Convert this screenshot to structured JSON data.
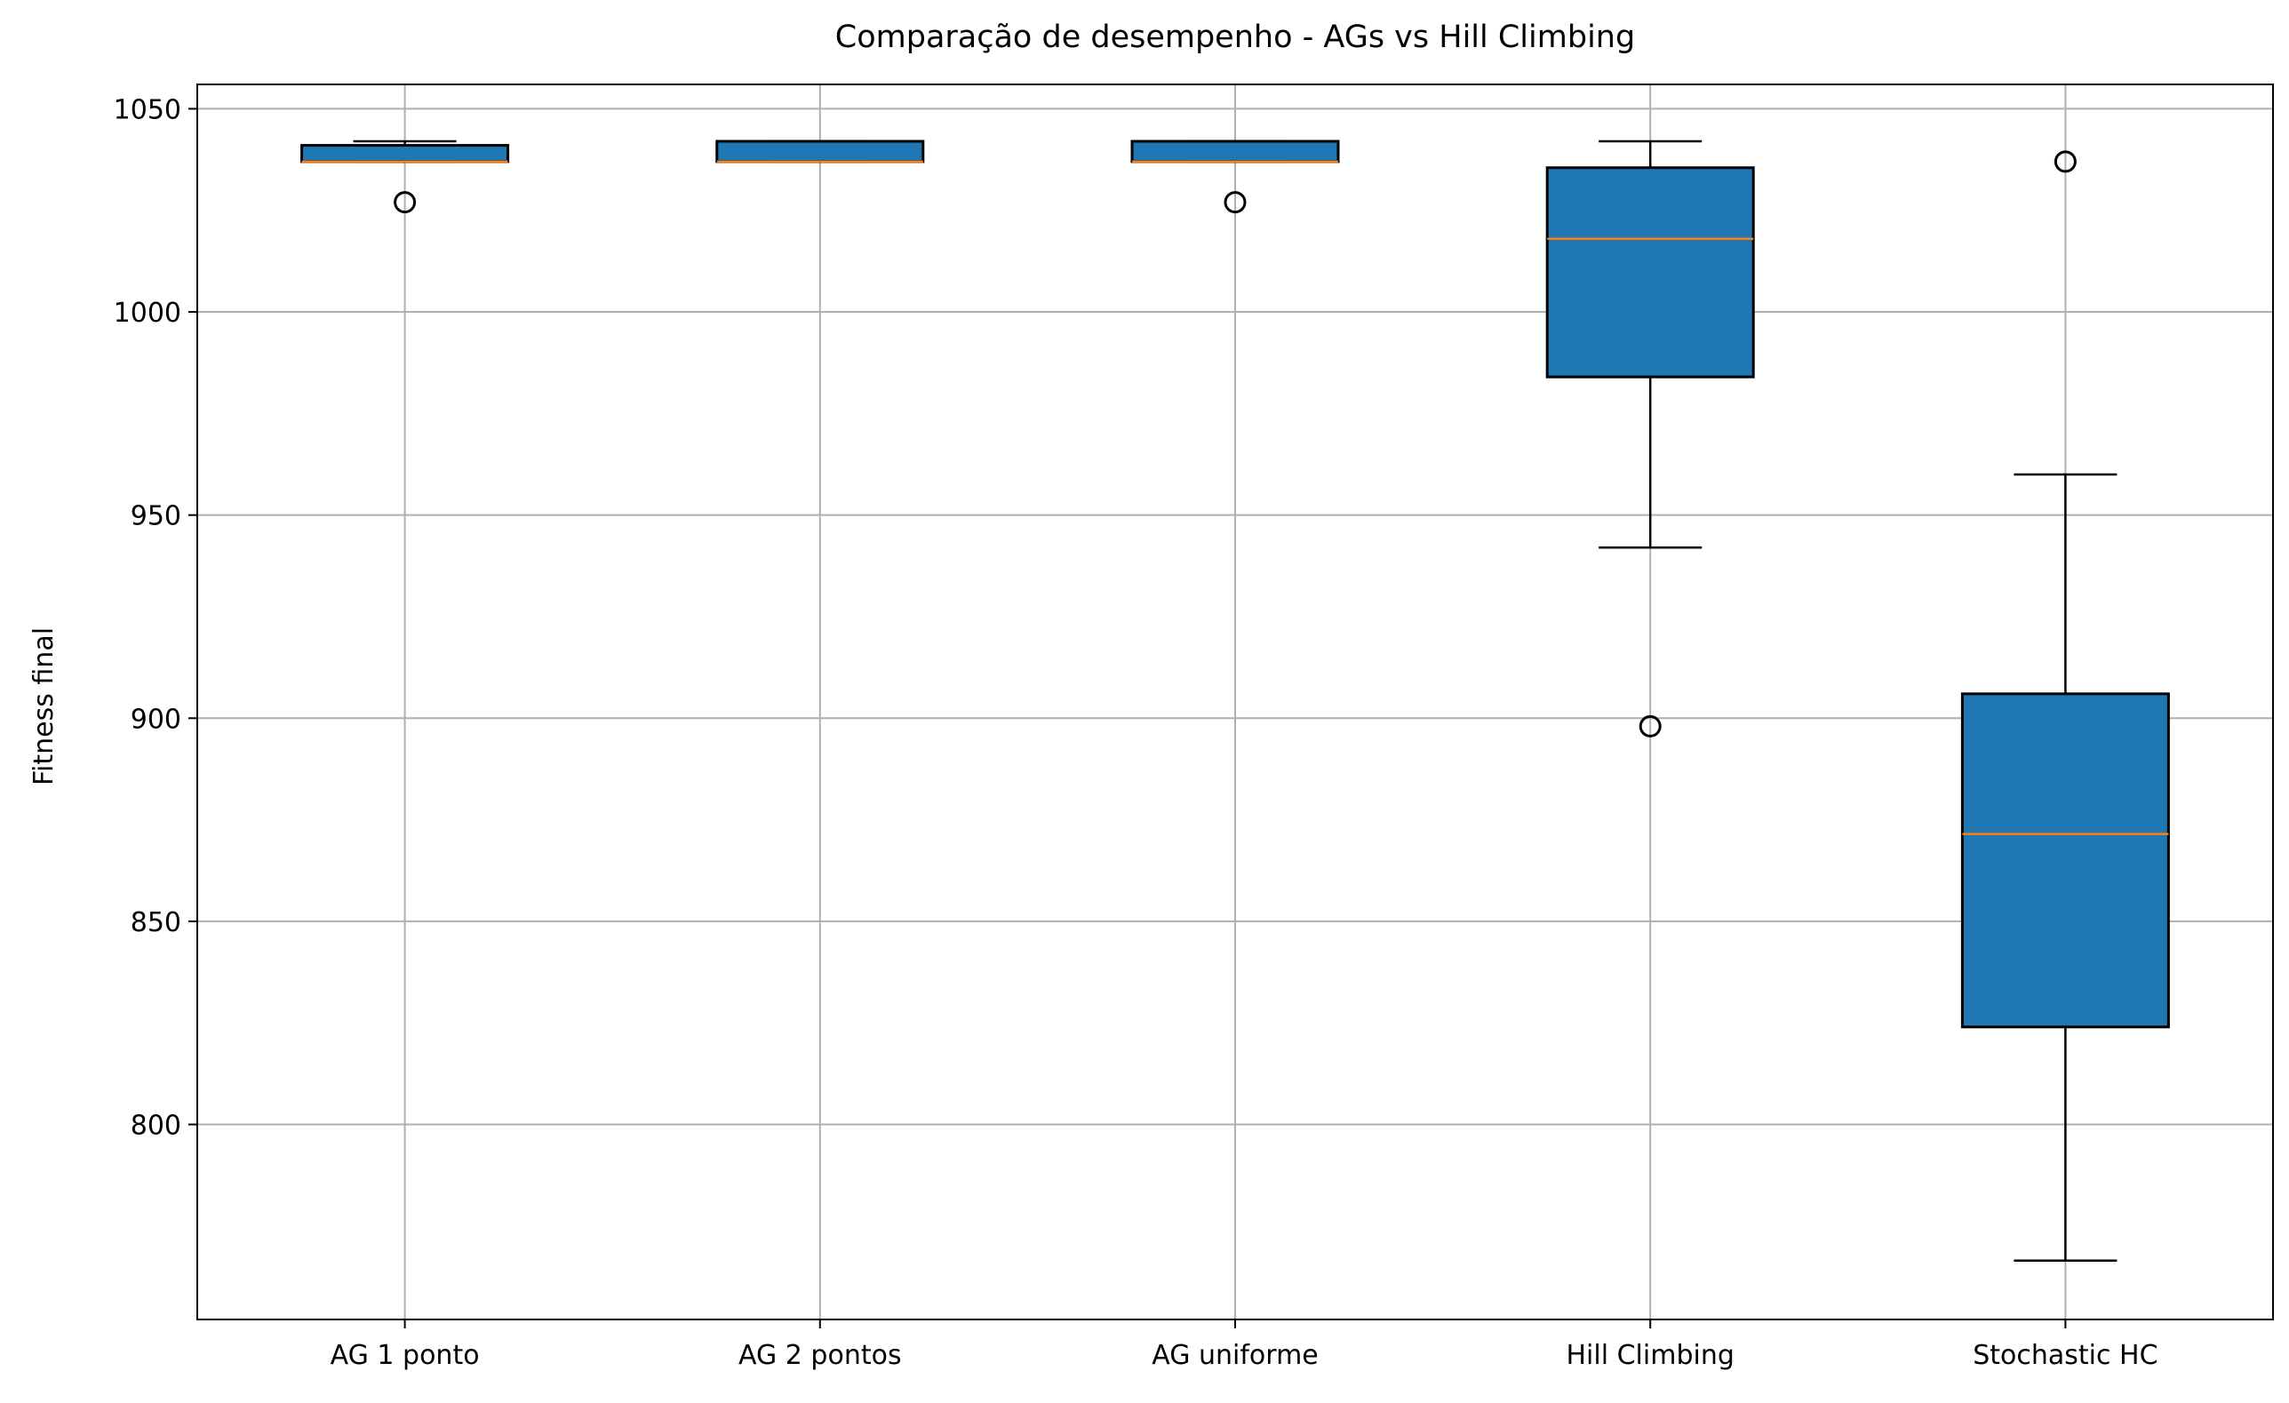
{
  "chart_data": {
    "type": "boxplot",
    "title": "Comparação de desempenho - AGs vs Hill Climbing",
    "xlabel": "",
    "ylabel": "Fitness final",
    "ylim": [
      752,
      1056
    ],
    "yticks": [
      800,
      850,
      900,
      950,
      1000,
      1050
    ],
    "grid": true,
    "colors": {
      "box": "#1f77b4",
      "median": "#ff7f0e",
      "edge": "#000000",
      "grid": "#b0b0b0"
    },
    "categories": [
      "AG 1 ponto",
      "AG 2 pontos",
      "AG uniforme",
      "Hill Climbing",
      "Stochastic HC"
    ],
    "boxes": [
      {
        "whisker_low": 1037,
        "q1": 1037,
        "median": 1037,
        "q3": 1041,
        "whisker_high": 1042,
        "outliers": [
          1027
        ]
      },
      {
        "whisker_low": 1037,
        "q1": 1037,
        "median": 1037,
        "q3": 1042,
        "whisker_high": 1042,
        "outliers": []
      },
      {
        "whisker_low": 1037,
        "q1": 1037,
        "median": 1037,
        "q3": 1042,
        "whisker_high": 1042,
        "outliers": [
          1027
        ]
      },
      {
        "whisker_low": 942,
        "q1": 984,
        "median": 1018,
        "q3": 1035.5,
        "whisker_high": 1042,
        "outliers": [
          898
        ]
      },
      {
        "whisker_low": 766.5,
        "q1": 824,
        "median": 871.5,
        "q3": 906,
        "whisker_high": 960,
        "outliers": [
          1037
        ]
      }
    ]
  }
}
